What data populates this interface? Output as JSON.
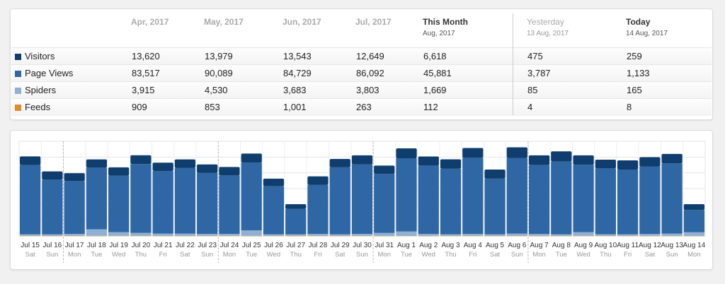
{
  "colors": {
    "visitors": "#0f3d6d",
    "pageviews": "#2e67a3",
    "spiders": "#8fb0d2",
    "feeds": "#e08a2e",
    "grid": "#e5e5e5"
  },
  "summary": {
    "columns": [
      {
        "label": "Apr, 2017",
        "sub": ""
      },
      {
        "label": "May, 2017",
        "sub": ""
      },
      {
        "label": "Jun, 2017",
        "sub": ""
      },
      {
        "label": "Jul, 2017",
        "sub": ""
      },
      {
        "label": "This Month",
        "sub": "Aug, 2017"
      },
      {
        "label": "Yesterday",
        "sub": "13 Aug, 2017"
      },
      {
        "label": "Today",
        "sub": "14 Aug, 2017"
      }
    ],
    "rows": [
      {
        "label": "Visitors",
        "color": "#0f3d6d",
        "values": [
          "13,620",
          "13,979",
          "13,543",
          "12,649",
          "6,618",
          "475",
          "259"
        ]
      },
      {
        "label": "Page Views",
        "color": "#2e67a3",
        "values": [
          "83,517",
          "90,089",
          "84,729",
          "86,092",
          "45,881",
          "3,787",
          "1,133"
        ]
      },
      {
        "label": "Spiders",
        "color": "#8fb0d2",
        "values": [
          "3,915",
          "4,530",
          "3,683",
          "3,803",
          "1,669",
          "85",
          "165"
        ]
      },
      {
        "label": "Feeds",
        "color": "#e08a2e",
        "values": [
          "909",
          "853",
          "1,001",
          "263",
          "112",
          "4",
          "8"
        ]
      }
    ]
  },
  "chart_data": {
    "type": "bar",
    "stacked": true,
    "categories": [
      "Jul 15",
      "Jul 16",
      "Jul 17",
      "Jul 18",
      "Jul 19",
      "Jul 20",
      "Jul 21",
      "Jul 22",
      "Jul 23",
      "Jul 24",
      "Jul 25",
      "Jul 26",
      "Jul 27",
      "Jul 28",
      "Jul 29",
      "Jul 30",
      "Jul 31",
      "Aug 1",
      "Aug 2",
      "Aug 3",
      "Aug 4",
      "Aug 5",
      "Aug 6",
      "Aug 7",
      "Aug 8",
      "Aug 9",
      "Aug 10",
      "Aug 11",
      "Aug 12",
      "Aug 13",
      "Aug 14"
    ],
    "weekdays": [
      "Sat",
      "Sun",
      "Mon",
      "Tue",
      "Wed",
      "Thu",
      "Fri",
      "Sat",
      "Sun",
      "Mon",
      "Tue",
      "Wed",
      "Thu",
      "Fri",
      "Sat",
      "Sun",
      "Mon",
      "Tue",
      "Wed",
      "Thu",
      "Fri",
      "Sat",
      "Sun",
      "Mon",
      "Tue",
      "Wed",
      "Thu",
      "Fri",
      "Sat",
      "Sun",
      "Mon"
    ],
    "week_separators_after": [
      1,
      8,
      15,
      22
    ],
    "series": [
      {
        "name": "Feeds",
        "values": [
          5,
          4,
          5,
          4,
          5,
          6,
          4,
          4,
          5,
          5,
          4,
          5,
          3,
          6,
          4,
          5,
          3,
          5,
          4,
          5,
          6,
          4,
          5,
          4,
          4,
          5,
          6,
          5,
          4,
          4,
          3
        ]
      },
      {
        "name": "Spiders",
        "values": [
          40,
          40,
          50,
          180,
          100,
          80,
          60,
          60,
          50,
          50,
          150,
          40,
          40,
          50,
          40,
          50,
          80,
          120,
          50,
          40,
          50,
          40,
          60,
          50,
          40,
          100,
          40,
          40,
          50,
          60,
          100
        ]
      },
      {
        "name": "Page Views",
        "values": [
          1900,
          1500,
          1450,
          1690,
          1550,
          1890,
          1720,
          1800,
          1680,
          1610,
          1860,
          1320,
          700,
          1350,
          1840,
          1910,
          1620,
          2010,
          1880,
          1800,
          2090,
          1530,
          2080,
          1890,
          2000,
          1850,
          1810,
          1780,
          1850,
          1930,
          610
        ]
      },
      {
        "name": "Visitors",
        "values": [
          240,
          230,
          220,
          230,
          230,
          240,
          230,
          240,
          230,
          230,
          250,
          210,
          130,
          230,
          230,
          250,
          230,
          270,
          250,
          260,
          270,
          250,
          290,
          270,
          280,
          260,
          240,
          250,
          260,
          260,
          160
        ]
      }
    ],
    "ylim": [
      0,
      2600
    ],
    "grid": true
  }
}
